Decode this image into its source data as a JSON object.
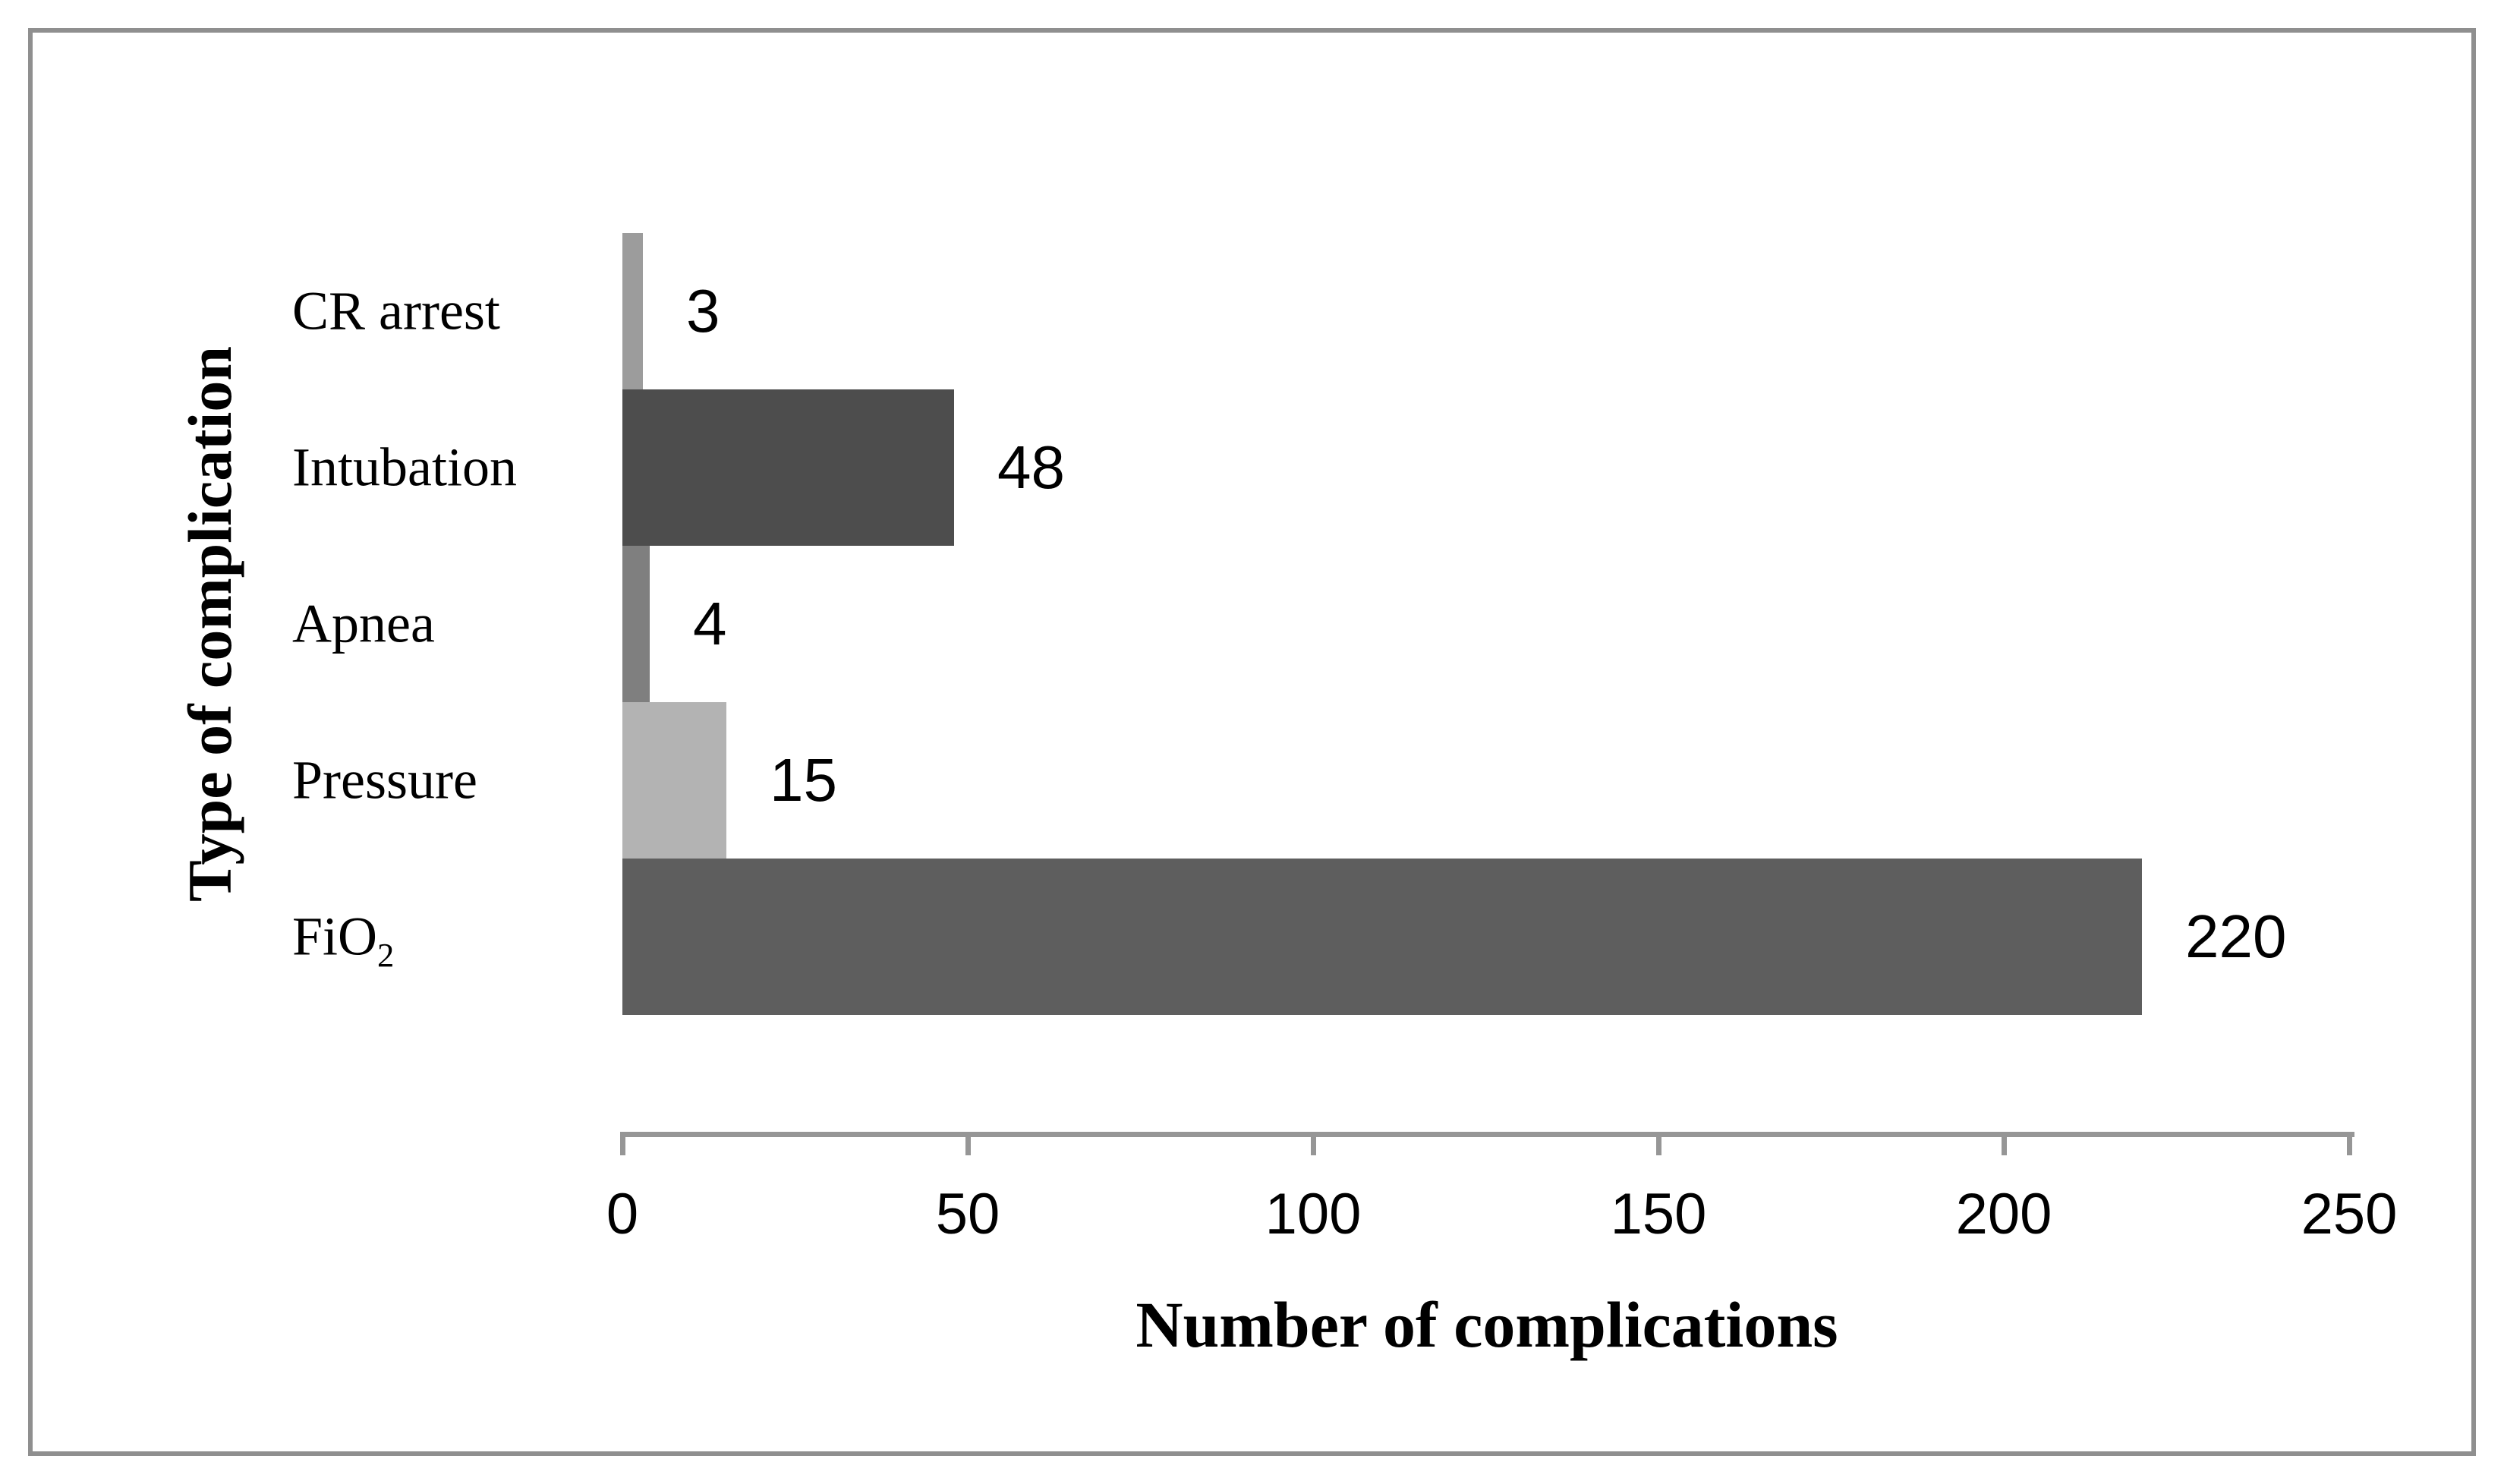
{
  "figure": {
    "background": "#ffffff",
    "border_color": "#8f8f8f"
  },
  "chart_data": {
    "type": "bar",
    "orientation": "horizontal",
    "title": "",
    "xlabel": "Number of complications",
    "ylabel": "Type of complication",
    "xlim": [
      0,
      250
    ],
    "xticks": [
      0,
      50,
      100,
      150,
      200,
      250
    ],
    "grid": false,
    "legend": false,
    "axis_color": "#969696",
    "text_color": "#000000",
    "bars": [
      {
        "category": "CR arrest",
        "subscript": "",
        "value": 3,
        "color": "#9c9c9c"
      },
      {
        "category": "Intubation",
        "subscript": "",
        "value": 48,
        "color": "#4d4d4d"
      },
      {
        "category": "Apnea",
        "subscript": "",
        "value": 4,
        "color": "#7f7f7f"
      },
      {
        "category": "Pressure",
        "subscript": "",
        "value": 15,
        "color": "#b3b3b3"
      },
      {
        "category": "FiO",
        "subscript": "2",
        "value": 220,
        "color": "#5e5e5e"
      }
    ]
  }
}
